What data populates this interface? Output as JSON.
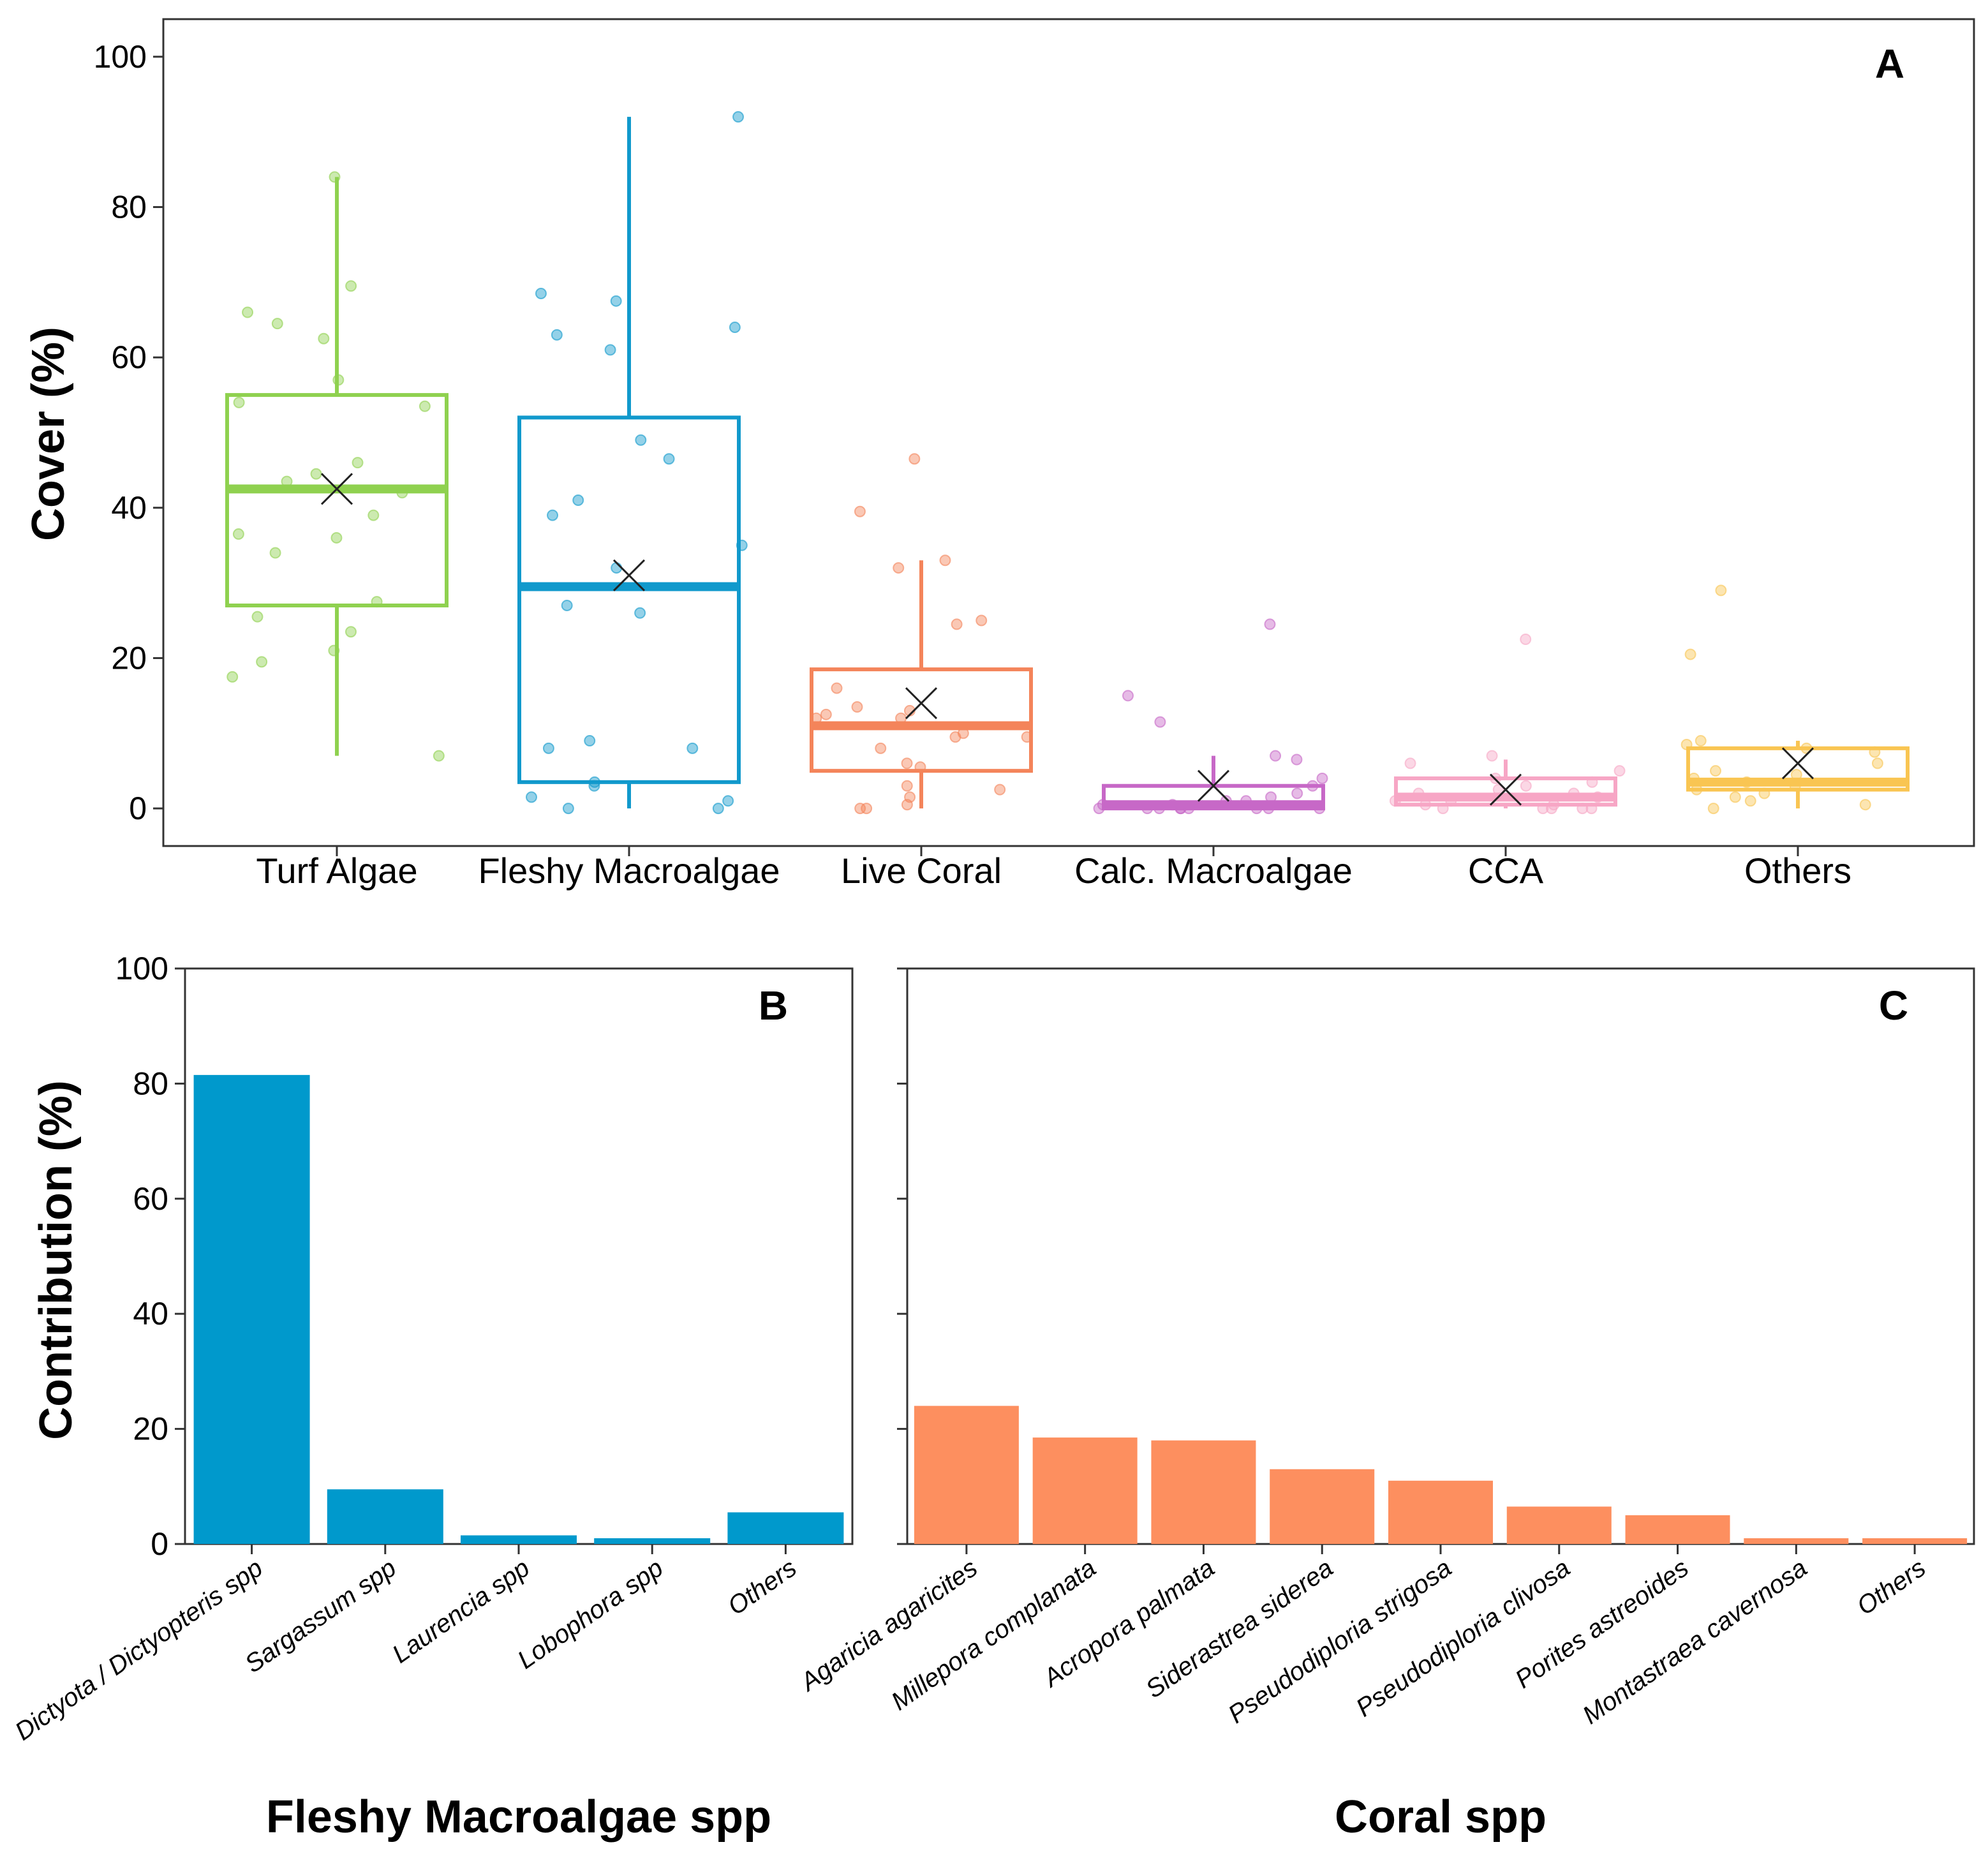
{
  "chart_data": [
    {
      "type": "box",
      "panel": "A",
      "ylabel": "Cover (%)",
      "ylim": [
        -5,
        105
      ],
      "yticks": [
        0,
        20,
        40,
        60,
        80,
        100
      ],
      "categories": [
        "Turf Algae",
        "Fleshy Macroalgae",
        "Live Coral",
        "Calc. Macroalgae",
        "CCA",
        "Others"
      ],
      "colors": [
        "#8fd14f",
        "#1199cc",
        "#f4845a",
        "#c768c7",
        "#f7a6c5",
        "#f9c552"
      ],
      "boxes": [
        {
          "q1": 27,
          "median": 42.5,
          "q3": 55,
          "whisker_low": 7,
          "whisker_high": 84,
          "mean": 42.5,
          "points": [
            84,
            69.5,
            66,
            64.5,
            62.5,
            57,
            54,
            53.5,
            46,
            44.5,
            43.5,
            42,
            39,
            36.5,
            36,
            34,
            27.5,
            25.5,
            23.5,
            21,
            19.5,
            17.5,
            7
          ]
        },
        {
          "q1": 3.5,
          "median": 29.5,
          "q3": 52,
          "whisker_low": 0,
          "whisker_high": 92,
          "mean": 31,
          "points": [
            92,
            68.5,
            67.5,
            64,
            63,
            61,
            49,
            46.5,
            41,
            39,
            35,
            32,
            27,
            26,
            9,
            8,
            8,
            3.5,
            3,
            1.5,
            1,
            0,
            0
          ]
        },
        {
          "q1": 5,
          "median": 11,
          "q3": 18.5,
          "whisker_low": 0,
          "whisker_high": 33,
          "mean": 14,
          "points": [
            46.5,
            39.5,
            33,
            32,
            25,
            24.5,
            16,
            13.5,
            13,
            12.5,
            12,
            12,
            10,
            9.5,
            9.5,
            8,
            6,
            5.5,
            3,
            2.5,
            1.5,
            0.5,
            0,
            0
          ]
        },
        {
          "q1": 0,
          "median": 0.5,
          "q3": 3,
          "whisker_low": 0,
          "whisker_high": 7,
          "mean": 3,
          "points": [
            24.5,
            15,
            11.5,
            7,
            6.5,
            4,
            3,
            2,
            1.5,
            1,
            1,
            0.5,
            0.5,
            0,
            0,
            0,
            0,
            0,
            0,
            0,
            0,
            0
          ]
        },
        {
          "q1": 0.5,
          "median": 1.5,
          "q3": 4,
          "whisker_low": 0,
          "whisker_high": 6.5,
          "mean": 2.5,
          "points": [
            22.5,
            7,
            6,
            5,
            4,
            3.5,
            3,
            2.5,
            2,
            2,
            1.5,
            1,
            1,
            0.5,
            0.5,
            0,
            0,
            0,
            0,
            0
          ]
        },
        {
          "q1": 2.5,
          "median": 3.5,
          "q3": 8,
          "whisker_low": 0,
          "whisker_high": 9,
          "mean": 6,
          "points": [
            29,
            20.5,
            9,
            8.5,
            8,
            7.5,
            6,
            5,
            4.5,
            4,
            3.5,
            3,
            2.5,
            2,
            1.5,
            1,
            0.5,
            0
          ]
        }
      ]
    },
    {
      "type": "bar",
      "panel": "B",
      "ylabel": "Contribution (%)",
      "xlabel": "Fleshy Macroalgae spp",
      "ylim": [
        0,
        100
      ],
      "yticks": [
        0,
        20,
        40,
        60,
        80,
        100
      ],
      "color": "#0099cc",
      "categories": [
        "Dictyota / Dictyopteris spp",
        "Sargassum spp",
        "Laurencia spp",
        "Lobophora spp",
        "Others"
      ],
      "values": [
        81.5,
        9.5,
        1.5,
        1,
        5.5
      ]
    },
    {
      "type": "bar",
      "panel": "C",
      "xlabel": "Coral spp",
      "ylim": [
        0,
        100
      ],
      "color": "#fd8f5f",
      "categories": [
        "Agaricia agaricites",
        "Millepora complanata",
        "Acropora palmata",
        "Siderastrea siderea",
        "Pseudodiploria strigosa",
        "Pseudodiploria clivosa",
        "Porites astreoides",
        "Montastraea cavernosa",
        "Others"
      ],
      "values": [
        24,
        18.5,
        18,
        13,
        11,
        6.5,
        5,
        1,
        1
      ]
    }
  ]
}
